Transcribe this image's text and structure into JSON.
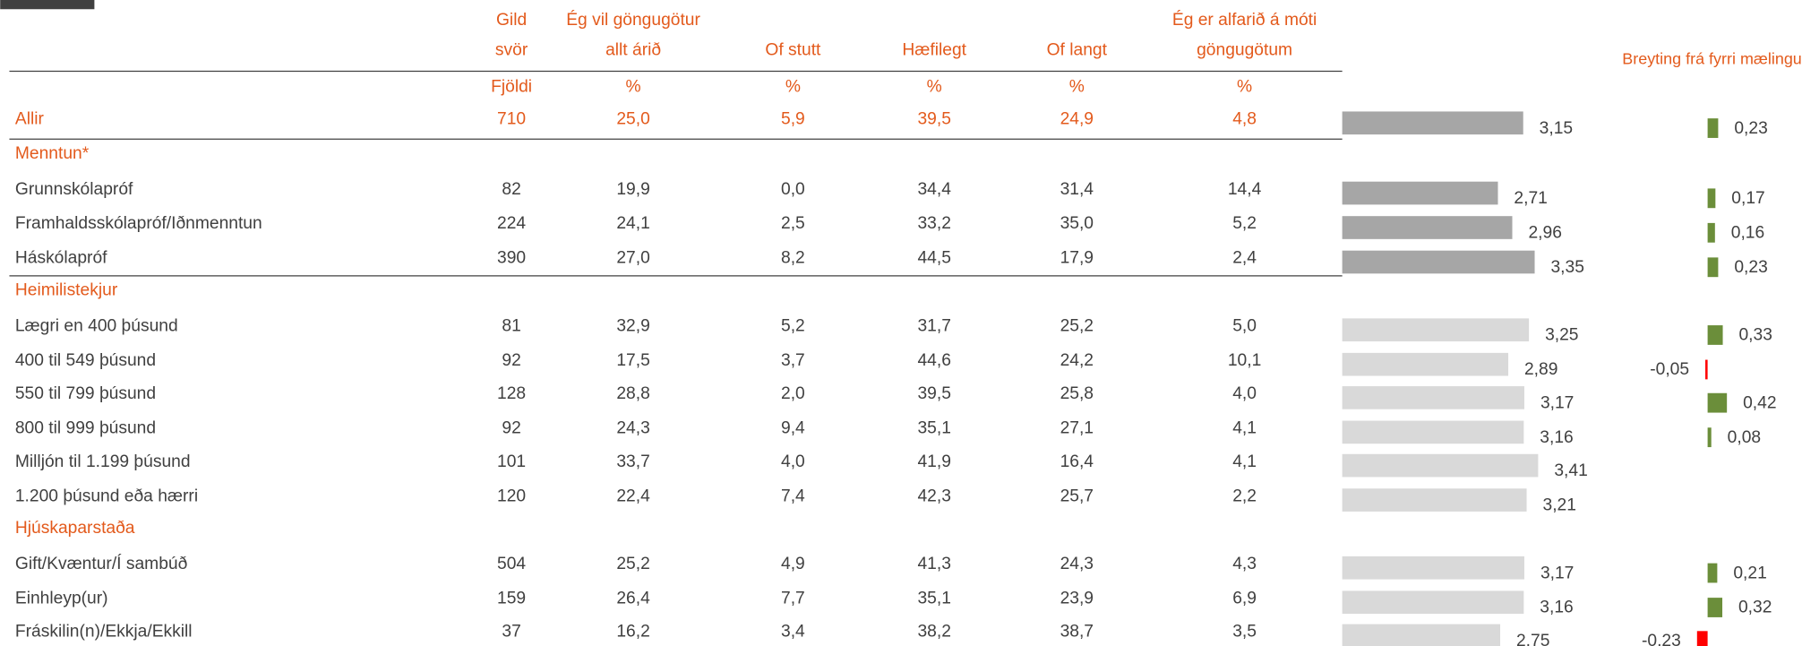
{
  "header": {
    "columns": [
      {
        "lines": [
          "Gild",
          "svör"
        ],
        "unit": "Fjöldi"
      },
      {
        "lines": [
          "Ég vil göngugötur",
          "allt árið"
        ],
        "unit": "%"
      },
      {
        "lines": [
          "Of stutt"
        ],
        "unit": "%"
      },
      {
        "lines": [
          "Hæfilegt"
        ],
        "unit": "%"
      },
      {
        "lines": [
          "Of langt"
        ],
        "unit": "%"
      },
      {
        "lines": [
          "Ég er alfarið á móti",
          "göngugötum"
        ],
        "unit": "%"
      }
    ],
    "change_title": "Breyting frá fyrri mælingu"
  },
  "bar_colors": {
    "dark": "#a6a6a6",
    "light": "#d9d9d9",
    "up": "#6b8e3a",
    "down": "#ff0000"
  },
  "rows": [
    {
      "kind": "total",
      "label": "Allir",
      "values": [
        "710",
        "25,0",
        "5,9",
        "39,5",
        "24,9",
        "4,8"
      ],
      "bar": "dark",
      "mean": {
        "value": 3.15,
        "label": "3,15"
      },
      "change": {
        "value": 0.23,
        "label": "0,23"
      }
    },
    {
      "kind": "heading",
      "label": "Menntun*"
    },
    {
      "kind": "item",
      "label": "Grunnskólapróf",
      "values": [
        "82",
        "19,9",
        "0,0",
        "34,4",
        "31,4",
        "14,4"
      ],
      "bar": "dark",
      "mean": {
        "value": 2.71,
        "label": "2,71"
      },
      "change": {
        "value": 0.17,
        "label": "0,17"
      }
    },
    {
      "kind": "item",
      "label": "Framhaldsskólapróf/Iðnmenntun",
      "values": [
        "224",
        "24,1",
        "2,5",
        "33,2",
        "35,0",
        "5,2"
      ],
      "bar": "dark",
      "mean": {
        "value": 2.96,
        "label": "2,96"
      },
      "change": {
        "value": 0.16,
        "label": "0,16"
      }
    },
    {
      "kind": "item",
      "label": "Háskólapróf",
      "values": [
        "390",
        "27,0",
        "8,2",
        "44,5",
        "17,9",
        "2,4"
      ],
      "bar": "dark",
      "mean": {
        "value": 3.35,
        "label": "3,35"
      },
      "change": {
        "value": 0.23,
        "label": "0,23"
      }
    },
    {
      "kind": "heading",
      "label": "Heimilistekjur"
    },
    {
      "kind": "item",
      "label": "Lægri en 400 þúsund",
      "values": [
        "81",
        "32,9",
        "5,2",
        "31,7",
        "25,2",
        "5,0"
      ],
      "bar": "light",
      "mean": {
        "value": 3.25,
        "label": "3,25"
      },
      "change": {
        "value": 0.33,
        "label": "0,33"
      }
    },
    {
      "kind": "item",
      "label": "400 til 549 þúsund",
      "values": [
        "92",
        "17,5",
        "3,7",
        "44,6",
        "24,2",
        "10,1"
      ],
      "bar": "light",
      "mean": {
        "value": 2.89,
        "label": "2,89"
      },
      "change": {
        "value": -0.05,
        "label": "-0,05"
      }
    },
    {
      "kind": "item",
      "label": "550 til 799 þúsund",
      "values": [
        "128",
        "28,8",
        "2,0",
        "39,5",
        "25,8",
        "4,0"
      ],
      "bar": "light",
      "mean": {
        "value": 3.17,
        "label": "3,17"
      },
      "change": {
        "value": 0.42,
        "label": "0,42"
      }
    },
    {
      "kind": "item",
      "label": "800 til 999 þúsund",
      "values": [
        "92",
        "24,3",
        "9,4",
        "35,1",
        "27,1",
        "4,1"
      ],
      "bar": "light",
      "mean": {
        "value": 3.16,
        "label": "3,16"
      },
      "change": {
        "value": 0.08,
        "label": "0,08"
      }
    },
    {
      "kind": "item",
      "label": "Milljón til 1.199 þúsund",
      "values": [
        "101",
        "33,7",
        "4,0",
        "41,9",
        "16,4",
        "4,1"
      ],
      "bar": "light",
      "mean": {
        "value": 3.41,
        "label": "3,41"
      }
    },
    {
      "kind": "item",
      "label": "1.200 þúsund eða hærri",
      "values": [
        "120",
        "22,4",
        "7,4",
        "42,3",
        "25,7",
        "2,2"
      ],
      "bar": "light",
      "mean": {
        "value": 3.21,
        "label": "3,21"
      }
    },
    {
      "kind": "heading",
      "label": "Hjúskaparstaða"
    },
    {
      "kind": "item",
      "label": "Gift/Kvæntur/Í sambúð",
      "values": [
        "504",
        "25,2",
        "4,9",
        "41,3",
        "24,3",
        "4,3"
      ],
      "bar": "light",
      "mean": {
        "value": 3.17,
        "label": "3,17"
      },
      "change": {
        "value": 0.21,
        "label": "0,21"
      }
    },
    {
      "kind": "item",
      "label": "Einhleyp(ur)",
      "values": [
        "159",
        "26,4",
        "7,7",
        "35,1",
        "23,9",
        "6,9"
      ],
      "bar": "light",
      "mean": {
        "value": 3.16,
        "label": "3,16"
      },
      "change": {
        "value": 0.32,
        "label": "0,32"
      }
    },
    {
      "kind": "item",
      "label": "Fráskilin(n)/Ekkja/Ekkill",
      "values": [
        "37",
        "16,2",
        "3,4",
        "38,2",
        "38,7",
        "3,5"
      ],
      "bar": "light",
      "mean": {
        "value": 2.75,
        "label": "2,75"
      },
      "change": {
        "value": -0.23,
        "label": "-0,23"
      }
    }
  ]
}
